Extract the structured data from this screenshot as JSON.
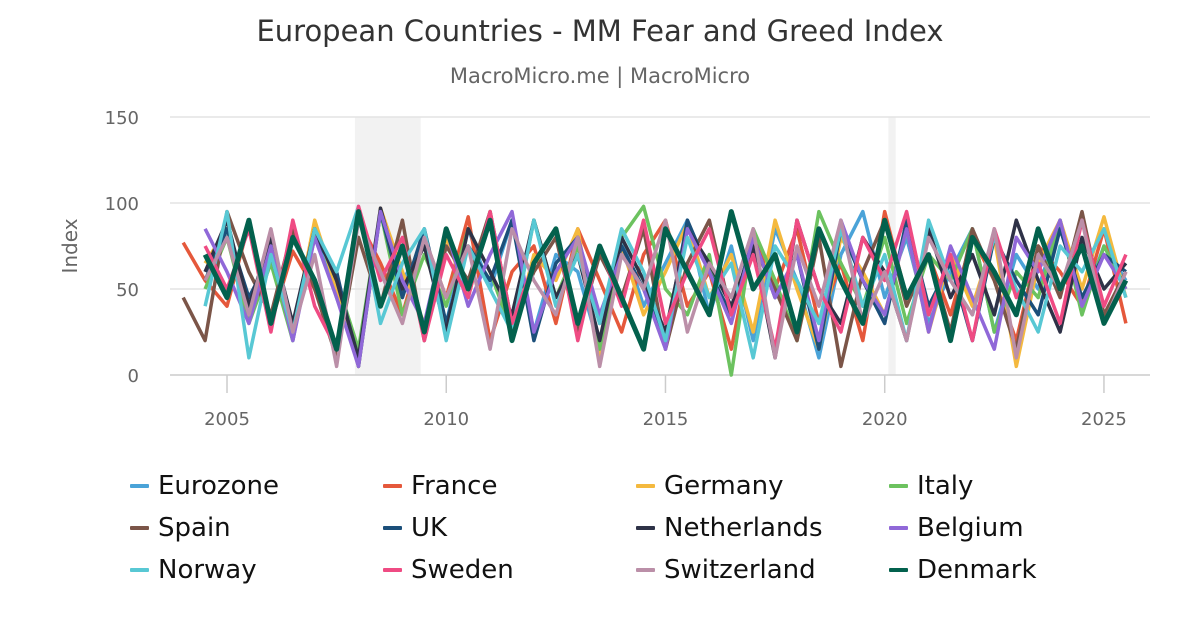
{
  "chart_data": {
    "type": "line",
    "title": "European Countries - MM Fear and Greed Index",
    "subtitle": "MacroMicro.me | MacroMicro",
    "ylabel": "Index",
    "xlabel": "",
    "ylim": [
      0,
      150
    ],
    "xlim": [
      2003.7,
      2026.05
    ],
    "yticks": [
      "0",
      "50",
      "100",
      "150"
    ],
    "xticks": [
      "2005",
      "2010",
      "2015",
      "2020",
      "2025"
    ],
    "grid": true,
    "legend_position": "bottom",
    "shaded_periods": [
      [
        "2007-12",
        "2009-06"
      ],
      [
        "2020-02",
        "2020-04"
      ]
    ],
    "shade_color": "#f2f2f2",
    "x": [
      "2004-01",
      "2004-07",
      "2005-01",
      "2005-07",
      "2006-01",
      "2006-07",
      "2007-01",
      "2007-07",
      "2008-01",
      "2008-07",
      "2009-01",
      "2009-07",
      "2010-01",
      "2010-07",
      "2011-01",
      "2011-07",
      "2012-01",
      "2012-07",
      "2013-01",
      "2013-07",
      "2014-01",
      "2014-07",
      "2015-01",
      "2015-07",
      "2016-01",
      "2016-07",
      "2017-01",
      "2017-07",
      "2018-01",
      "2018-07",
      "2019-01",
      "2019-07",
      "2020-01",
      "2020-07",
      "2021-01",
      "2021-07",
      "2022-01",
      "2022-07",
      "2023-01",
      "2023-07",
      "2024-01",
      "2024-07",
      "2025-01",
      "2025-07"
    ],
    "series": [
      {
        "name": "Eurozone",
        "color": "#4aa3d8",
        "values": [
          null,
          60,
          82,
          35,
          70,
          20,
          88,
          45,
          10,
          95,
          55,
          75,
          30,
          85,
          50,
          90,
          25,
          70,
          60,
          15,
          80,
          40,
          65,
          90,
          35,
          75,
          20,
          85,
          55,
          10,
          70,
          95,
          45,
          80,
          30,
          60,
          85,
          25,
          70,
          50,
          90,
          40,
          75,
          55
        ]
      },
      {
        "name": "France",
        "color": "#e5583b",
        "values": [
          77,
          55,
          40,
          88,
          30,
          72,
          50,
          15,
          90,
          65,
          35,
          80,
          45,
          92,
          20,
          60,
          75,
          30,
          85,
          55,
          25,
          70,
          90,
          40,
          60,
          15,
          80,
          50,
          85,
          30,
          65,
          20,
          95,
          45,
          70,
          35,
          80,
          55,
          20,
          75,
          60,
          40,
          85,
          30
        ]
      },
      {
        "name": "Germany",
        "color": "#f4b93e",
        "values": [
          null,
          65,
          85,
          40,
          75,
          25,
          90,
          50,
          5,
          97,
          60,
          30,
          80,
          45,
          95,
          20,
          70,
          55,
          85,
          10,
          75,
          35,
          60,
          88,
          45,
          70,
          25,
          90,
          50,
          15,
          80,
          60,
          35,
          85,
          25,
          70,
          40,
          80,
          5,
          65,
          90,
          50,
          92,
          45
        ]
      },
      {
        "name": "Italy",
        "color": "#6cc25f",
        "values": [
          null,
          50,
          80,
          30,
          65,
          20,
          85,
          55,
          15,
          95,
          35,
          70,
          40,
          85,
          60,
          25,
          90,
          45,
          75,
          15,
          80,
          98,
          50,
          35,
          70,
          0,
          85,
          55,
          20,
          95,
          65,
          40,
          80,
          30,
          70,
          55,
          85,
          25,
          60,
          45,
          90,
          35,
          75,
          50
        ]
      },
      {
        "name": "Spain",
        "color": "#7b5548",
        "values": [
          45,
          20,
          95,
          60,
          35,
          85,
          50,
          10,
          80,
          40,
          90,
          20,
          75,
          55,
          95,
          30,
          60,
          80,
          25,
          70,
          45,
          85,
          15,
          65,
          90,
          35,
          75,
          50,
          20,
          80,
          5,
          60,
          90,
          40,
          70,
          25,
          85,
          55,
          15,
          75,
          45,
          95,
          35,
          60
        ]
      },
      {
        "name": "UK",
        "color": "#1b4f7a",
        "values": [
          null,
          55,
          85,
          45,
          70,
          25,
          80,
          60,
          5,
          95,
          45,
          85,
          30,
          75,
          55,
          90,
          20,
          65,
          80,
          30,
          75,
          50,
          20,
          90,
          60,
          35,
          80,
          45,
          70,
          15,
          85,
          55,
          30,
          90,
          40,
          65,
          20,
          80,
          55,
          35,
          85,
          45,
          70,
          60
        ]
      },
      {
        "name": "Netherlands",
        "color": "#2e3247",
        "values": [
          null,
          60,
          90,
          40,
          80,
          30,
          85,
          55,
          10,
          97,
          50,
          75,
          25,
          85,
          60,
          35,
          90,
          45,
          70,
          20,
          80,
          55,
          25,
          85,
          65,
          40,
          75,
          10,
          90,
          50,
          30,
          80,
          60,
          20,
          85,
          45,
          70,
          35,
          90,
          55,
          25,
          80,
          50,
          65
        ]
      },
      {
        "name": "Belgium",
        "color": "#9068d8",
        "values": [
          null,
          85,
          60,
          30,
          75,
          20,
          80,
          45,
          5,
          95,
          55,
          30,
          85,
          40,
          70,
          95,
          25,
          60,
          80,
          35,
          70,
          50,
          15,
          85,
          60,
          30,
          80,
          45,
          70,
          20,
          90,
          55,
          35,
          85,
          25,
          75,
          45,
          15,
          80,
          60,
          90,
          40,
          70,
          50
        ]
      },
      {
        "name": "Norway",
        "color": "#58c8d4",
        "values": [
          null,
          40,
          95,
          10,
          70,
          25,
          85,
          60,
          98,
          30,
          65,
          85,
          20,
          75,
          50,
          25,
          90,
          40,
          70,
          30,
          85,
          60,
          20,
          80,
          45,
          65,
          10,
          75,
          55,
          30,
          85,
          40,
          70,
          20,
          90,
          55,
          35,
          80,
          50,
          25,
          75,
          60,
          85,
          45
        ]
      },
      {
        "name": "Sweden",
        "color": "#ef4b83",
        "values": [
          null,
          75,
          50,
          85,
          25,
          90,
          40,
          15,
          98,
          55,
          80,
          20,
          70,
          45,
          95,
          30,
          65,
          85,
          20,
          75,
          40,
          90,
          30,
          60,
          85,
          35,
          70,
          15,
          90,
          50,
          25,
          80,
          55,
          95,
          35,
          70,
          20,
          85,
          45,
          65,
          30,
          90,
          40,
          70
        ]
      },
      {
        "name": "Switzerland",
        "color": "#bb8fa8",
        "values": [
          null,
          55,
          80,
          35,
          85,
          25,
          70,
          5,
          90,
          60,
          30,
          80,
          45,
          75,
          15,
          85,
          55,
          35,
          80,
          5,
          70,
          50,
          90,
          25,
          65,
          45,
          85,
          10,
          75,
          40,
          90,
          30,
          60,
          20,
          80,
          55,
          35,
          85,
          10,
          70,
          50,
          90,
          30,
          60
        ]
      },
      {
        "name": "Denmark",
        "color": "#03614d",
        "values": [
          null,
          70,
          45,
          90,
          30,
          80,
          55,
          15,
          95,
          40,
          75,
          25,
          85,
          50,
          90,
          20,
          65,
          85,
          30,
          75,
          45,
          15,
          85,
          60,
          35,
          95,
          50,
          70,
          25,
          85,
          55,
          30,
          90,
          45,
          70,
          20,
          80,
          60,
          35,
          85,
          50,
          75,
          30,
          55
        ]
      }
    ]
  }
}
